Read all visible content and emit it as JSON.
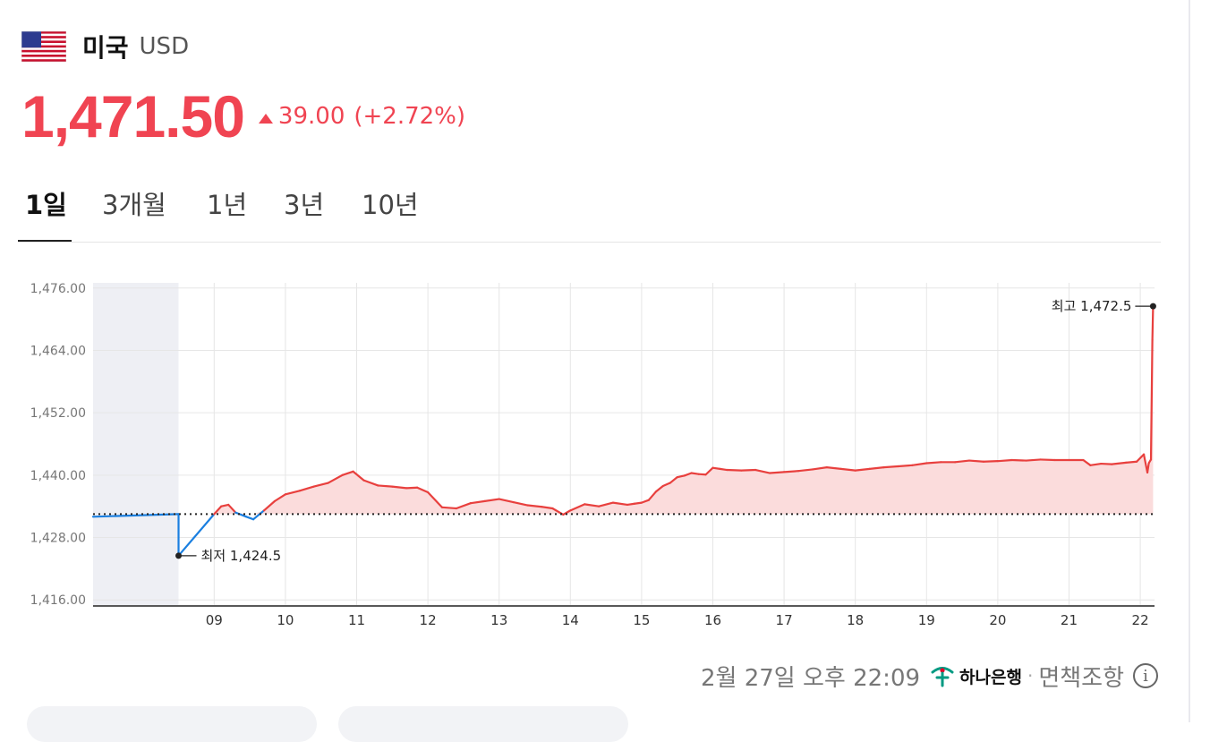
{
  "header": {
    "country": "미국",
    "currency_code": "USD",
    "flag_icon": "us-flag-icon"
  },
  "quote": {
    "price": "1,471.50",
    "change": "39.00",
    "change_pct": "(+2.72%)",
    "direction": "up",
    "up_color": "#f04452"
  },
  "tabs": [
    {
      "label": "1일",
      "active": true
    },
    {
      "label": "3개월"
    },
    {
      "label": "1년"
    },
    {
      "label": "3년"
    },
    {
      "label": "10년"
    }
  ],
  "chart_data": {
    "type": "area",
    "xlabel": "",
    "ylabel": "",
    "x_ticks": [
      "09",
      "10",
      "11",
      "12",
      "13",
      "14",
      "15",
      "16",
      "17",
      "18",
      "19",
      "20",
      "21",
      "22"
    ],
    "y_ticks": [
      "1,476.00",
      "1,464.00",
      "1,452.00",
      "1,440.00",
      "1,428.00",
      "1,416.00"
    ],
    "ylim": [
      1415,
      1477
    ],
    "xlim": [
      7.3,
      22.2
    ],
    "night_icon": "moon-icon",
    "baseline": 1432.5,
    "high_label": "최고 1,472.5",
    "low_label": "최저 1,424.5",
    "colors": {
      "up": "#e8403e",
      "down": "#1a7fe0",
      "fill": "#fbdcdc",
      "night_band": "#eeeff4"
    },
    "series": [
      {
        "x": [
          7.3,
          8.5,
          8.5,
          9.0,
          9.1,
          9.2,
          9.3,
          9.45,
          9.55,
          9.7,
          9.85,
          10.0,
          10.2,
          10.4,
          10.6,
          10.8,
          10.95,
          11.1,
          11.3,
          11.5,
          11.7,
          11.85,
          12.0,
          12.2,
          12.4,
          12.6,
          12.8,
          13.0,
          13.2,
          13.4,
          13.6,
          13.75,
          13.9,
          14.0,
          14.2,
          14.4,
          14.6,
          14.8,
          14.9,
          15.0,
          15.1,
          15.2,
          15.3,
          15.4,
          15.5,
          15.6,
          15.7,
          15.8,
          15.9,
          16.0,
          16.1,
          16.2,
          16.4,
          16.6,
          16.8,
          17.0,
          17.2,
          17.4,
          17.6,
          17.8,
          18.0,
          18.2,
          18.4,
          18.6,
          18.8,
          19.0,
          19.2,
          19.4,
          19.6,
          19.8,
          20.0,
          20.2,
          20.4,
          20.6,
          20.8,
          21.0,
          21.2,
          21.3,
          21.45,
          21.6,
          21.8,
          21.95,
          22.05,
          22.1,
          22.12,
          22.15,
          22.17,
          22.18
        ],
        "y": [
          1432.0,
          1432.5,
          1424.5,
          1432.5,
          1434.0,
          1434.3,
          1432.8,
          1432.0,
          1431.5,
          1433.2,
          1435.0,
          1436.3,
          1437.0,
          1437.8,
          1438.5,
          1440.0,
          1440.7,
          1439.0,
          1438.0,
          1437.8,
          1437.5,
          1437.6,
          1436.7,
          1433.8,
          1433.6,
          1434.6,
          1435.0,
          1435.4,
          1434.8,
          1434.2,
          1433.9,
          1433.6,
          1432.4,
          1433.2,
          1434.4,
          1434.0,
          1434.7,
          1434.3,
          1434.5,
          1434.7,
          1435.2,
          1436.8,
          1437.9,
          1438.5,
          1439.6,
          1439.9,
          1440.4,
          1440.2,
          1440.1,
          1441.4,
          1441.2,
          1441.0,
          1440.9,
          1441.0,
          1440.4,
          1440.6,
          1440.8,
          1441.1,
          1441.5,
          1441.2,
          1440.9,
          1441.2,
          1441.5,
          1441.7,
          1441.9,
          1442.3,
          1442.5,
          1442.5,
          1442.8,
          1442.6,
          1442.7,
          1442.9,
          1442.8,
          1443.0,
          1442.9,
          1442.9,
          1442.9,
          1441.9,
          1442.2,
          1442.1,
          1442.4,
          1442.6,
          1444.0,
          1440.5,
          1442.3,
          1443.0,
          1466.0,
          1472.5
        ]
      }
    ]
  },
  "footer": {
    "timestamp": "2월 27일 오후 22:09",
    "bank_name": "하나은행",
    "separator": "·",
    "disclaimer": "면책조항",
    "info_glyph": "i"
  }
}
